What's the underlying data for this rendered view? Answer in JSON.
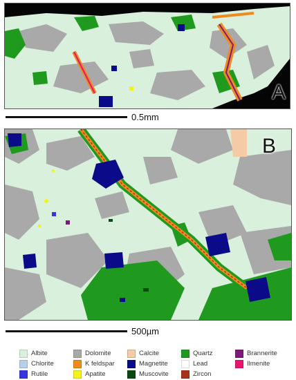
{
  "panels": {
    "a_label": "A",
    "b_label": "B"
  },
  "scales": {
    "a_text": "0.5mm",
    "b_text": "500µm"
  },
  "legend": [
    {
      "label": "Albite",
      "color": "#d9f0dc"
    },
    {
      "label": "Dolomite",
      "color": "#a9a9a9"
    },
    {
      "label": "Calcite",
      "color": "#f5cba7"
    },
    {
      "label": "Quartz",
      "color": "#1f9a1f"
    },
    {
      "label": "Brannerite",
      "color": "#7b1a7b"
    },
    {
      "label": "Chlorite",
      "color": "#b7cfe8"
    },
    {
      "label": "K feldspar",
      "color": "#ee8a1e"
    },
    {
      "label": "Magnetite",
      "color": "#0b0b8a"
    },
    {
      "label": "Lead",
      "color": "#ffffff"
    },
    {
      "label": "Ilmenite",
      "color": "#e8156f"
    },
    {
      "label": "Rutile",
      "color": "#3535e0"
    },
    {
      "label": "Apatite",
      "color": "#f3f31a"
    },
    {
      "label": "Muscovite",
      "color": "#0a4a12"
    },
    {
      "label": "Zircon",
      "color": "#a8321a"
    },
    {
      "label": "",
      "color": ""
    }
  ]
}
